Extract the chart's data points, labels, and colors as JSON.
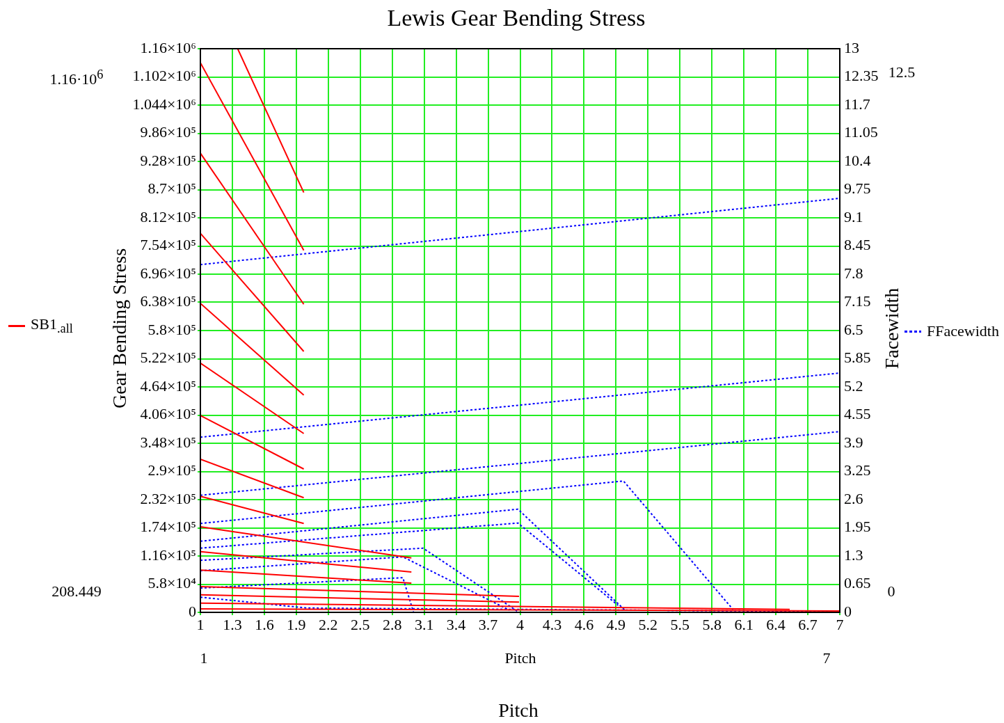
{
  "chart_data": {
    "type": "line",
    "title": "Lewis Gear Bending Stress",
    "xlabel": "Pitch",
    "ylabel": "Gear Bending Stress",
    "y2label": "Facewidth",
    "annotations": [
      "1.16·10$^{6}$",
      "208.449",
      "12.5",
      "0",
      "1",
      "Pitch",
      "7"
    ],
    "xlim": [
      1,
      7
    ],
    "xticks": [
      1,
      1.3,
      1.6,
      1.9,
      2.2,
      2.5,
      2.8,
      3.1,
      3.4,
      3.7,
      4,
      4.3,
      4.6,
      4.9,
      5.2,
      5.5,
      5.8,
      6.1,
      6.4,
      6.7,
      7
    ],
    "ylim": [
      0,
      1160000
    ],
    "yticks": [
      0,
      {
        "value": 58000,
        "label": "5.8×10⁴"
      },
      {
        "value": 116000,
        "label": "1.16×10⁵"
      },
      {
        "value": 174000,
        "label": "1.74×10⁵"
      },
      {
        "value": 232000,
        "label": "2.32×10⁵"
      },
      {
        "value": 290000,
        "label": "2.9×10⁵"
      },
      {
        "value": 348000,
        "label": "3.48×10⁵"
      },
      {
        "value": 406000,
        "label": "4.06×10⁵"
      },
      {
        "value": 464000,
        "label": "4.64×10⁵"
      },
      {
        "value": 522000,
        "label": "5.22×10⁵"
      },
      {
        "value": 580000,
        "label": "5.8×10⁵"
      },
      {
        "value": 638000,
        "label": "6.38×10⁵"
      },
      {
        "value": 696000,
        "label": "6.96×10⁵"
      },
      {
        "value": 754000,
        "label": "7.54×10⁵"
      },
      {
        "value": 812000,
        "label": "8.12×10⁵"
      },
      {
        "value": 870000,
        "label": "8.7×10⁵"
      },
      {
        "value": 928000,
        "label": "9.28×10⁵"
      },
      {
        "value": 986000,
        "label": "9.86×10⁵"
      },
      {
        "value": 1044000,
        "label": "1.044×10⁶"
      },
      {
        "value": 1102000,
        "label": "1.102×10⁶"
      },
      {
        "value": 1160000,
        "label": "1.16×10⁶"
      }
    ],
    "y2lim": [
      0,
      13
    ],
    "y2ticks": [
      0,
      0.65,
      1.3,
      1.95,
      2.6,
      3.25,
      3.9,
      4.55,
      5.2,
      5.85,
      6.5,
      7.15,
      7.8,
      8.45,
      9.1,
      9.75,
      10.4,
      11.05,
      11.7,
      12.35,
      13
    ],
    "grid": true,
    "legend": "left",
    "marker": "none",
    "series": [
      {
        "name": "SB1$_{.all}$",
        "color": "#ff0000",
        "line_style": "solid",
        "x": [
          1.35,
          1.97
        ],
        "values": [
          1160000,
          864000
        ]
      },
      {
        "color": "#ff0000",
        "line_style": "solid",
        "x": [
          1,
          1.97
        ],
        "values": [
          1131000,
          745000
        ]
      },
      {
        "color": "#ff0000",
        "line_style": "solid",
        "x": [
          1,
          1.97
        ],
        "values": [
          945000,
          634000
        ]
      },
      {
        "color": "#ff0000",
        "line_style": "solid",
        "x": [
          1,
          1.97
        ],
        "values": [
          780000,
          537000
        ]
      },
      {
        "color": "#ff0000",
        "line_style": "solid",
        "x": [
          1,
          1.97
        ],
        "values": [
          636000,
          447000
        ]
      },
      {
        "color": "#ff0000",
        "line_style": "solid",
        "x": [
          1,
          1.97
        ],
        "values": [
          513000,
          368000
        ]
      },
      {
        "color": "#ff0000",
        "line_style": "solid",
        "x": [
          1,
          1.97
        ],
        "values": [
          405000,
          295000
        ]
      },
      {
        "color": "#ff0000",
        "line_style": "solid",
        "x": [
          1,
          1.97
        ],
        "values": [
          315000,
          236000
        ]
      },
      {
        "color": "#ff0000",
        "line_style": "solid",
        "x": [
          1,
          1.97
        ],
        "values": [
          239000,
          183000
        ]
      },
      {
        "color": "#ff0000",
        "line_style": "solid",
        "x": [
          1,
          2.98
        ],
        "values": [
          176000,
          112000
        ]
      },
      {
        "color": "#ff0000",
        "line_style": "solid",
        "x": [
          1,
          2.98
        ],
        "values": [
          125000,
          83000
        ]
      },
      {
        "color": "#ff0000",
        "line_style": "solid",
        "x": [
          1,
          2.98
        ],
        "values": [
          87000,
          60000
        ]
      },
      {
        "color": "#ff0000",
        "line_style": "solid",
        "x": [
          1,
          3.99
        ],
        "values": [
          53000,
          33000
        ]
      },
      {
        "color": "#ff0000",
        "line_style": "solid",
        "x": [
          1,
          3.99
        ],
        "values": [
          36000,
          21000
        ]
      },
      {
        "color": "#ff0000",
        "line_style": "solid",
        "x": [
          1,
          6.53
        ],
        "values": [
          19000,
          6000
        ]
      },
      {
        "color": "#ff0000",
        "line_style": "solid",
        "x": [
          1,
          7
        ],
        "values": [
          7000,
          3000
        ]
      },
      {
        "name": "FFacewidth",
        "color": "#0000ff",
        "line_style": "dotted",
        "axis": "y2",
        "x": [
          1,
          7
        ],
        "values": [
          8.02,
          9.55
        ]
      },
      {
        "color": "#0000ff",
        "line_style": "dotted",
        "axis": "y2",
        "x": [
          1,
          7
        ],
        "values": [
          4.04,
          5.52
        ]
      },
      {
        "color": "#0000ff",
        "line_style": "dotted",
        "axis": "y2",
        "x": [
          1,
          7
        ],
        "values": [
          2.7,
          4.17
        ]
      },
      {
        "color": "#0000ff",
        "line_style": "dotted",
        "axis": "y2",
        "x": [
          1,
          4.97,
          6.0
        ],
        "values": [
          2.05,
          3.03,
          0.06
        ]
      },
      {
        "color": "#0000ff",
        "line_style": "dotted",
        "axis": "y2",
        "x": [
          1,
          3.98,
          4.98
        ],
        "values": [
          1.64,
          2.38,
          0.06
        ]
      },
      {
        "color": "#0000ff",
        "line_style": "dotted",
        "axis": "y2",
        "x": [
          1,
          3.98,
          4.92
        ],
        "values": [
          1.48,
          2.06,
          0.16
        ]
      },
      {
        "color": "#0000ff",
        "line_style": "dotted",
        "axis": "y2",
        "x": [
          1,
          3.09,
          3.99
        ],
        "values": [
          1.2,
          1.48,
          0
        ]
      },
      {
        "color": "#0000ff",
        "line_style": "dotted",
        "axis": "y2",
        "x": [
          1,
          2.9,
          3.9
        ],
        "values": [
          0.96,
          1.28,
          0.05
        ]
      },
      {
        "color": "#0000ff",
        "line_style": "dotted",
        "axis": "y2",
        "x": [
          1,
          2.9,
          3.0
        ],
        "values": [
          0.56,
          0.8,
          0
        ]
      },
      {
        "color": "#0000ff",
        "line_style": "dotted",
        "axis": "y2",
        "x": [
          1,
          2.0,
          7
        ],
        "values": [
          0.35,
          0.1,
          0.02
        ]
      }
    ]
  }
}
